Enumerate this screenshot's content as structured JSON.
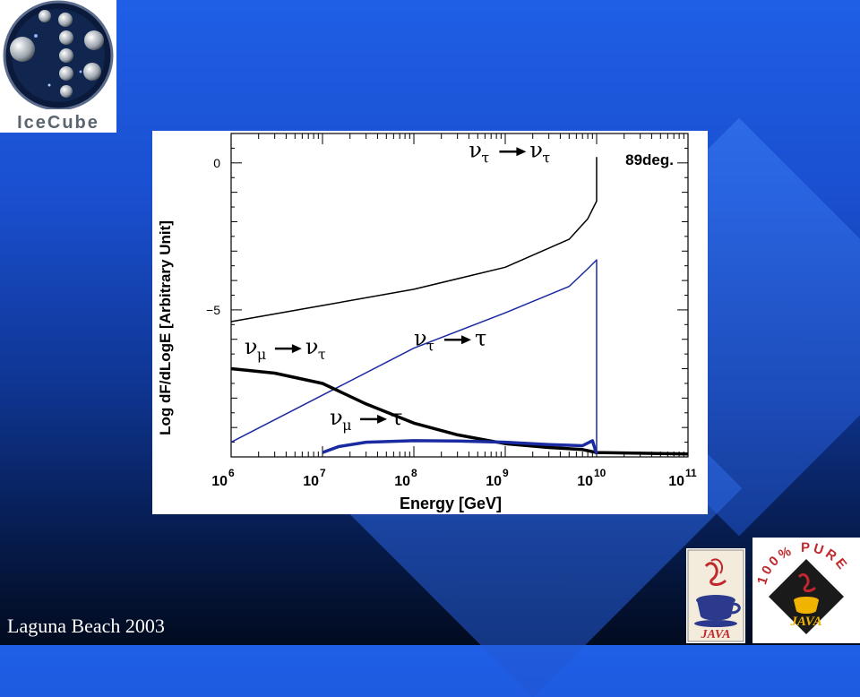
{
  "logo": {
    "text": "IceCube"
  },
  "footer": {
    "text": "Laguna Beach 2003"
  },
  "java_badges": {
    "left_text": "JAVA",
    "right_text": "JAVA",
    "right_ring_text": "100% PURE"
  },
  "chart_data": {
    "type": "line",
    "title": "89deg.",
    "xlabel": "Energy [GeV]",
    "ylabel": "Log dF/dLogE [Arbitrary Unit]",
    "x_scale": "log",
    "xlim": [
      1000000,
      100000000000
    ],
    "ylim": [
      -10,
      1
    ],
    "x_tick_labels": [
      {
        "base": "10",
        "exp": "6",
        "value": 1000000
      },
      {
        "base": "10",
        "exp": "7",
        "value": 10000000
      },
      {
        "base": "10",
        "exp": "8",
        "value": 100000000
      },
      {
        "base": "10",
        "exp": "9",
        "value": 1000000000
      },
      {
        "base": "10",
        "exp": "10",
        "value": 10000000000
      },
      {
        "base": "10",
        "exp": "11",
        "value": 100000000000
      }
    ],
    "y_tick_labels": [
      {
        "label": "0",
        "value": 0
      },
      {
        "label": "−5",
        "value": -5
      }
    ],
    "series": [
      {
        "name": "ντ → ντ",
        "color": "#000000",
        "width": 1.5,
        "points": [
          [
            1000000,
            -5.4
          ],
          [
            10000000,
            -4.85
          ],
          [
            100000000,
            -4.3
          ],
          [
            1000000000,
            -3.55
          ],
          [
            5000000000,
            -2.6
          ],
          [
            8000000000,
            -1.9
          ],
          [
            10000000000,
            -1.3
          ],
          [
            10000000000,
            0.2
          ]
        ]
      },
      {
        "name": "ντ → τ",
        "color": "#1a2aa0",
        "width": 1.5,
        "points": [
          [
            1000000,
            -9.5
          ],
          [
            10000000,
            -7.9
          ],
          [
            100000000,
            -6.3
          ],
          [
            1000000000,
            -5.1
          ],
          [
            5000000000,
            -4.2
          ],
          [
            8000000000,
            -3.6
          ],
          [
            10000000000,
            -3.3
          ],
          [
            10000000000,
            -9.9
          ]
        ]
      },
      {
        "name": "νμ → ντ",
        "color": "#000000",
        "width": 3.5,
        "points": [
          [
            1000000,
            -7.0
          ],
          [
            3000000,
            -7.15
          ],
          [
            10000000,
            -7.5
          ],
          [
            30000000,
            -8.2
          ],
          [
            100000000,
            -8.85
          ],
          [
            300000000,
            -9.25
          ],
          [
            1000000000,
            -9.55
          ],
          [
            3000000000,
            -9.68
          ],
          [
            7000000000,
            -9.75
          ],
          [
            10000000000,
            -9.85
          ],
          [
            100000000000,
            -9.9
          ]
        ]
      },
      {
        "name": "νμ → τ",
        "color": "#1a2aa0",
        "width": 3.5,
        "points": [
          [
            10000000,
            -9.85
          ],
          [
            15000000,
            -9.65
          ],
          [
            30000000,
            -9.5
          ],
          [
            100000000,
            -9.45
          ],
          [
            300000000,
            -9.46
          ],
          [
            1000000000,
            -9.5
          ],
          [
            3000000000,
            -9.58
          ],
          [
            7000000000,
            -9.62
          ],
          [
            9000000000,
            -9.45
          ],
          [
            10000000000,
            -9.9
          ]
        ]
      }
    ],
    "annotations": [
      {
        "from": "ν",
        "from_sub": "τ",
        "to": "ν",
        "to_sub": "τ",
        "x": 400000000,
        "y": 0.2
      },
      {
        "from": "ν",
        "from_sub": "τ",
        "to": "τ",
        "to_sub": "",
        "x": 100000000,
        "y": -6.2
      },
      {
        "from": "ν",
        "from_sub": "μ",
        "to": "ν",
        "to_sub": "τ",
        "x": 1400000,
        "y": -6.5
      },
      {
        "from": "ν",
        "from_sub": "μ",
        "to": "τ",
        "to_sub": "",
        "x": 12000000,
        "y": -8.9
      }
    ]
  }
}
